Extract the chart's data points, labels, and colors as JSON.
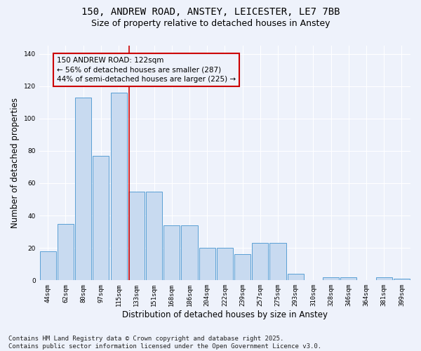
{
  "title_line1": "150, ANDREW ROAD, ANSTEY, LEICESTER, LE7 7BB",
  "title_line2": "Size of property relative to detached houses in Anstey",
  "xlabel": "Distribution of detached houses by size in Anstey",
  "ylabel": "Number of detached properties",
  "categories": [
    "44sqm",
    "62sqm",
    "80sqm",
    "97sqm",
    "115sqm",
    "133sqm",
    "151sqm",
    "168sqm",
    "186sqm",
    "204sqm",
    "222sqm",
    "239sqm",
    "257sqm",
    "275sqm",
    "293sqm",
    "310sqm",
    "328sqm",
    "346sqm",
    "364sqm",
    "381sqm",
    "399sqm"
  ],
  "values": [
    18,
    35,
    113,
    77,
    116,
    55,
    55,
    34,
    34,
    20,
    20,
    16,
    23,
    23,
    4,
    0,
    2,
    2,
    0,
    2,
    1
  ],
  "bar_color": "#c8daf0",
  "bar_edge_color": "#5a9fd4",
  "reference_line_x": 4.58,
  "reference_line_color": "#cc0000",
  "annotation_text": "150 ANDREW ROAD: 122sqm\n← 56% of detached houses are smaller (287)\n44% of semi-detached houses are larger (225) →",
  "annotation_box_facecolor": "#eef2fb",
  "annotation_box_edgecolor": "#cc0000",
  "annotation_text_color": "black",
  "ylim": [
    0,
    145
  ],
  "yticks": [
    0,
    20,
    40,
    60,
    80,
    100,
    120,
    140
  ],
  "background_color": "#eef2fb",
  "grid_color": "#ffffff",
  "footer_text": "Contains HM Land Registry data © Crown copyright and database right 2025.\nContains public sector information licensed under the Open Government Licence v3.0.",
  "title_fontsize": 10,
  "subtitle_fontsize": 9,
  "tick_fontsize": 6.5,
  "label_fontsize": 8.5,
  "footer_fontsize": 6.5,
  "annot_fontsize": 7.5
}
